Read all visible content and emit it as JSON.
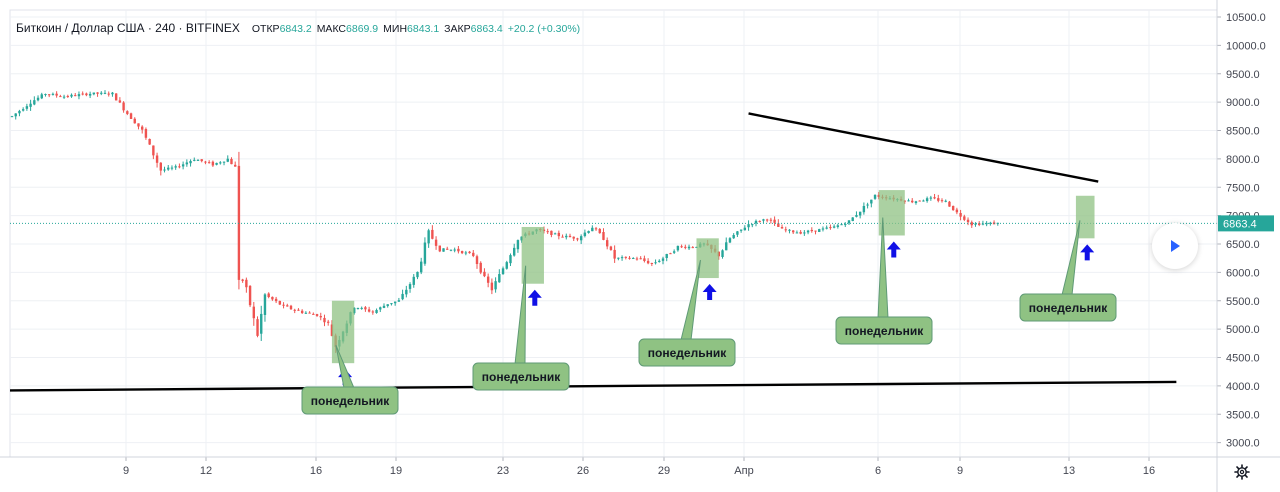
{
  "header": {
    "title": "Биткоин / Доллар США · 240 · BITFINEX",
    "ohlc": [
      {
        "label": "ОТКР",
        "value": "6843.2"
      },
      {
        "label": "МАКС",
        "value": "6869.9"
      },
      {
        "label": "МИН",
        "value": "6843.1"
      },
      {
        "label": "ЗАКР",
        "value": "6863.4"
      }
    ],
    "change": "+20.2 (+0.30%)"
  },
  "price_tag": "6863.4",
  "colors": {
    "up": "#26a69a",
    "down": "#ef5350",
    "annotation_fill": "#8fc283",
    "annotation_border": "#5f9a76",
    "arrow": "#1010e6",
    "trendline": "#000000",
    "price_line": "#26a69a"
  },
  "icons": {
    "play": "play-icon",
    "settings": "gear-icon"
  },
  "chart_data": {
    "type": "candlestick",
    "yticks": [
      "10500.0",
      "10000.0",
      "9500.0",
      "9000.0",
      "8500.0",
      "8000.0",
      "7500.0",
      "7000.0",
      "6500.0",
      "6000.0",
      "5500.0",
      "5000.0",
      "4500.0",
      "4000.0",
      "3500.0",
      "3000.0"
    ],
    "xticks": [
      "9",
      "12",
      "16",
      "19",
      "23",
      "26",
      "29",
      "Апр",
      "6",
      "9",
      "13",
      "16"
    ],
    "ylim": [
      2750,
      10550
    ],
    "last_price": 6863.4,
    "price_path": [
      [
        0,
        8750
      ],
      [
        5,
        9000
      ],
      [
        9,
        9150
      ],
      [
        14,
        9100
      ],
      [
        21,
        9150
      ],
      [
        27,
        9150
      ],
      [
        31,
        8800
      ],
      [
        35,
        8500
      ],
      [
        40,
        7800
      ],
      [
        44,
        7850
      ],
      [
        49,
        8000
      ],
      [
        54,
        7900
      ],
      [
        58,
        8000
      ],
      [
        60,
        7850
      ],
      [
        61,
        6000
      ],
      [
        63,
        5700
      ],
      [
        66,
        4900
      ],
      [
        68,
        5600
      ],
      [
        73,
        5400
      ],
      [
        78,
        5300
      ],
      [
        82,
        5250
      ],
      [
        85,
        5100
      ],
      [
        87,
        4700
      ],
      [
        92,
        5400
      ],
      [
        97,
        5300
      ],
      [
        101,
        5450
      ],
      [
        104,
        5500
      ],
      [
        109,
        6000
      ],
      [
        112,
        6700
      ],
      [
        115,
        6400
      ],
      [
        119,
        6400
      ],
      [
        124,
        6300
      ],
      [
        127,
        5900
      ],
      [
        129,
        5700
      ],
      [
        133,
        6200
      ],
      [
        136,
        6600
      ],
      [
        141,
        6750
      ],
      [
        147,
        6650
      ],
      [
        152,
        6600
      ],
      [
        156,
        6800
      ],
      [
        159,
        6600
      ],
      [
        162,
        6250
      ],
      [
        168,
        6250
      ],
      [
        172,
        6150
      ],
      [
        175,
        6250
      ],
      [
        179,
        6450
      ],
      [
        183,
        6450
      ],
      [
        186,
        6500
      ],
      [
        190,
        6300
      ],
      [
        193,
        6600
      ],
      [
        198,
        6850
      ],
      [
        203,
        6950
      ],
      [
        207,
        6750
      ],
      [
        212,
        6700
      ],
      [
        217,
        6750
      ],
      [
        221,
        6800
      ],
      [
        225,
        6900
      ],
      [
        229,
        7150
      ],
      [
        232,
        7350
      ],
      [
        237,
        7300
      ],
      [
        242,
        7250
      ],
      [
        247,
        7300
      ],
      [
        251,
        7250
      ],
      [
        254,
        7050
      ],
      [
        258,
        6850
      ],
      [
        262,
        6860
      ],
      [
        265,
        6863
      ]
    ],
    "support_line": [
      [
        0,
        3920
      ],
      [
        313,
        4070
      ]
    ],
    "resistance_line": [
      [
        198,
        8800
      ],
      [
        292,
        7600
      ]
    ],
    "monday_zones": [
      {
        "from": 86,
        "to": 92,
        "high": 5500,
        "low": 4400,
        "label": "понедельник"
      },
      {
        "from": 137,
        "to": 143,
        "high": 6800,
        "low": 5800,
        "label": "понедельник"
      },
      {
        "from": 184,
        "to": 190,
        "high": 6600,
        "low": 5900,
        "label": "понедельник"
      },
      {
        "from": 233,
        "to": 240,
        "high": 7450,
        "low": 6650,
        "label": "понедельник"
      },
      {
        "from": 286,
        "to": 291,
        "high": 7350,
        "low": 6600,
        "label": "понедельник"
      }
    ]
  }
}
